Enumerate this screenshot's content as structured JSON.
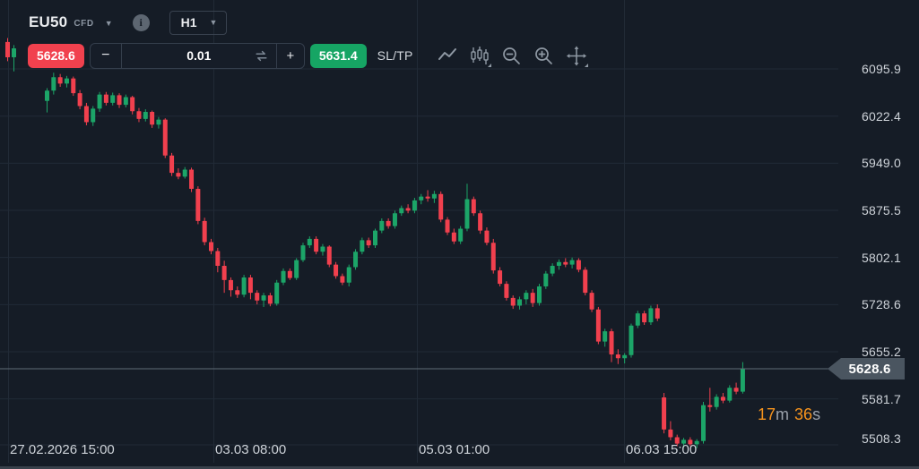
{
  "header": {
    "symbol": "EU50",
    "instrument_type": "CFD",
    "info_icon_glyph": "i",
    "timeframe": "H1"
  },
  "trade_panel": {
    "sell_price": "5628.6",
    "minus_label": "−",
    "quantity_value": "0.01",
    "plus_label": "+",
    "buy_price": "5631.4",
    "sltp_label": "SL/TP"
  },
  "countdown": {
    "minutes": "17",
    "minutes_unit": "m",
    "seconds": "36",
    "seconds_unit": "s"
  },
  "current_price_label": "5628.6",
  "colors": {
    "background": "#151c26",
    "grid": "#212a36",
    "up": "#1ca568",
    "down": "#f1404e",
    "sell_button": "#f1414e",
    "buy_button": "#16a564",
    "axis_text": "#ced3d9",
    "countdown_orange": "#f7941d",
    "price_line": "#5f6b77",
    "badge_bg": "#4a5560",
    "icon_gray": "#8f99a4"
  },
  "chart_data": {
    "type": "candlestick",
    "title": "EU50 CFD H1 candlestick chart",
    "y_axis": {
      "ticks": [
        6095.9,
        6022.4,
        5949.0,
        5875.5,
        5802.1,
        5728.6,
        5655.2,
        5581.7,
        5508.3
      ],
      "min": 5508.3,
      "max": 6095.9
    },
    "x_axis": {
      "tick_labels": [
        "27.02.2026 15:00",
        "03.03 08:00",
        "05.03 01:00",
        "06.03 15:00"
      ],
      "tick_x": [
        9,
        238,
        465,
        696
      ]
    },
    "current_price": 5628.6,
    "lead_candles": [
      {
        "x": 8.5,
        "ohlc": [
          6138,
          6144,
          6108,
          6114
        ]
      },
      {
        "x": 15.5,
        "ohlc": [
          6114,
          6133,
          6092,
          6128
        ]
      }
    ],
    "candles": [
      [
        6046,
        6066,
        6028,
        6062
      ],
      [
        6062,
        6090,
        6056,
        6083
      ],
      [
        6083,
        6088,
        6068,
        6073
      ],
      [
        6073,
        6085,
        6067,
        6081
      ],
      [
        6081,
        6084,
        6054,
        6058
      ],
      [
        6058,
        6063,
        6033,
        6038
      ],
      [
        6038,
        6043,
        6008,
        6013
      ],
      [
        6013,
        6038,
        6007,
        6034
      ],
      [
        6034,
        6060,
        6029,
        6056
      ],
      [
        6056,
        6060,
        6039,
        6043
      ],
      [
        6043,
        6059,
        6039,
        6055
      ],
      [
        6055,
        6058,
        6035,
        6040
      ],
      [
        6040,
        6056,
        6036,
        6052
      ],
      [
        6052,
        6054,
        6025,
        6030
      ],
      [
        6030,
        6035,
        6013,
        6018
      ],
      [
        6018,
        6033,
        6014,
        6029
      ],
      [
        6029,
        6031,
        6004,
        6009
      ],
      [
        6009,
        6021,
        6003,
        6017
      ],
      [
        6017,
        6019,
        5957,
        5961
      ],
      [
        5961,
        5965,
        5929,
        5934
      ],
      [
        5934,
        5941,
        5924,
        5928
      ],
      [
        5928,
        5943,
        5925,
        5939
      ],
      [
        5939,
        5942,
        5904,
        5909
      ],
      [
        5909,
        5913,
        5854,
        5859
      ],
      [
        5859,
        5864,
        5821,
        5826
      ],
      [
        5826,
        5831,
        5807,
        5812
      ],
      [
        5812,
        5817,
        5779,
        5789
      ],
      [
        5789,
        5797,
        5747,
        5767
      ],
      [
        5767,
        5771,
        5741,
        5751
      ],
      [
        5751,
        5757,
        5739,
        5744
      ],
      [
        5744,
        5775,
        5740,
        5771
      ],
      [
        5771,
        5775,
        5737,
        5747
      ],
      [
        5747,
        5751,
        5729,
        5735
      ],
      [
        5735,
        5747,
        5725,
        5743
      ],
      [
        5743,
        5747,
        5726,
        5730
      ],
      [
        5730,
        5767,
        5727,
        5763
      ],
      [
        5763,
        5785,
        5759,
        5781
      ],
      [
        5781,
        5785,
        5767,
        5770
      ],
      [
        5770,
        5801,
        5767,
        5798
      ],
      [
        5798,
        5825,
        5795,
        5821
      ],
      [
        5821,
        5835,
        5817,
        5831
      ],
      [
        5831,
        5835,
        5807,
        5811
      ],
      [
        5811,
        5823,
        5805,
        5819
      ],
      [
        5819,
        5821,
        5787,
        5791
      ],
      [
        5791,
        5795,
        5769,
        5773
      ],
      [
        5773,
        5777,
        5759,
        5763
      ],
      [
        5763,
        5791,
        5757,
        5787
      ],
      [
        5787,
        5815,
        5783,
        5811
      ],
      [
        5811,
        5833,
        5807,
        5829
      ],
      [
        5829,
        5833,
        5817,
        5821
      ],
      [
        5821,
        5847,
        5817,
        5844
      ],
      [
        5844,
        5863,
        5840,
        5859
      ],
      [
        5859,
        5863,
        5847,
        5851
      ],
      [
        5851,
        5875,
        5847,
        5871
      ],
      [
        5871,
        5883,
        5867,
        5879
      ],
      [
        5879,
        5885,
        5871,
        5875
      ],
      [
        5875,
        5895,
        5871,
        5891
      ],
      [
        5891,
        5901,
        5885,
        5897
      ],
      [
        5897,
        5907,
        5889,
        5894
      ],
      [
        5894,
        5906,
        5887,
        5901
      ],
      [
        5901,
        5905,
        5857,
        5861
      ],
      [
        5861,
        5865,
        5837,
        5841
      ],
      [
        5841,
        5847,
        5823,
        5827
      ],
      [
        5827,
        5851,
        5823,
        5847
      ],
      [
        5847,
        5917,
        5843,
        5893
      ],
      [
        5893,
        5897,
        5867,
        5871
      ],
      [
        5871,
        5875,
        5839,
        5844
      ],
      [
        5844,
        5849,
        5821,
        5825
      ],
      [
        5825,
        5831,
        5777,
        5782
      ],
      [
        5782,
        5787,
        5757,
        5761
      ],
      [
        5761,
        5765,
        5735,
        5739
      ],
      [
        5739,
        5743,
        5722,
        5727
      ],
      [
        5727,
        5741,
        5721,
        5737
      ],
      [
        5737,
        5751,
        5729,
        5747
      ],
      [
        5747,
        5753,
        5725,
        5731
      ],
      [
        5731,
        5761,
        5727,
        5757
      ],
      [
        5757,
        5781,
        5753,
        5777
      ],
      [
        5777,
        5793,
        5773,
        5789
      ],
      [
        5789,
        5799,
        5783,
        5795
      ],
      [
        5795,
        5801,
        5787,
        5791
      ],
      [
        5791,
        5802,
        5785,
        5798
      ],
      [
        5798,
        5801,
        5779,
        5783
      ],
      [
        5783,
        5787,
        5743,
        5747
      ],
      [
        5747,
        5751,
        5717,
        5721
      ],
      [
        5721,
        5725,
        5667,
        5671
      ],
      [
        5671,
        5691,
        5663,
        5687
      ],
      [
        5687,
        5691,
        5639,
        5651
      ],
      [
        5651,
        5659,
        5636,
        5645
      ],
      [
        5645,
        5653,
        5637,
        5650
      ],
      [
        5650,
        5699,
        5646,
        5696
      ],
      [
        5696,
        5719,
        5692,
        5715
      ],
      [
        5715,
        5719,
        5697,
        5701
      ],
      [
        5701,
        5727,
        5697,
        5723
      ],
      [
        5723,
        5729,
        5703,
        5707
      ],
      [
        5584,
        5591,
        5528,
        5534
      ],
      [
        5534,
        5547,
        5517,
        5522
      ],
      [
        5522,
        5526,
        5508,
        5512
      ],
      [
        5512,
        5521,
        5506,
        5518
      ],
      [
        5518,
        5522,
        5508,
        5511
      ],
      [
        5511,
        5519,
        5505,
        5516
      ],
      [
        5516,
        5577,
        5512,
        5572
      ],
      [
        5572,
        5599,
        5562,
        5569
      ],
      [
        5569,
        5589,
        5565,
        5585
      ],
      [
        5585,
        5591,
        5575,
        5579
      ],
      [
        5579,
        5603,
        5576,
        5599
      ],
      [
        5599,
        5607,
        5589,
        5593
      ],
      [
        5593,
        5639,
        5590,
        5628.6
      ]
    ]
  }
}
